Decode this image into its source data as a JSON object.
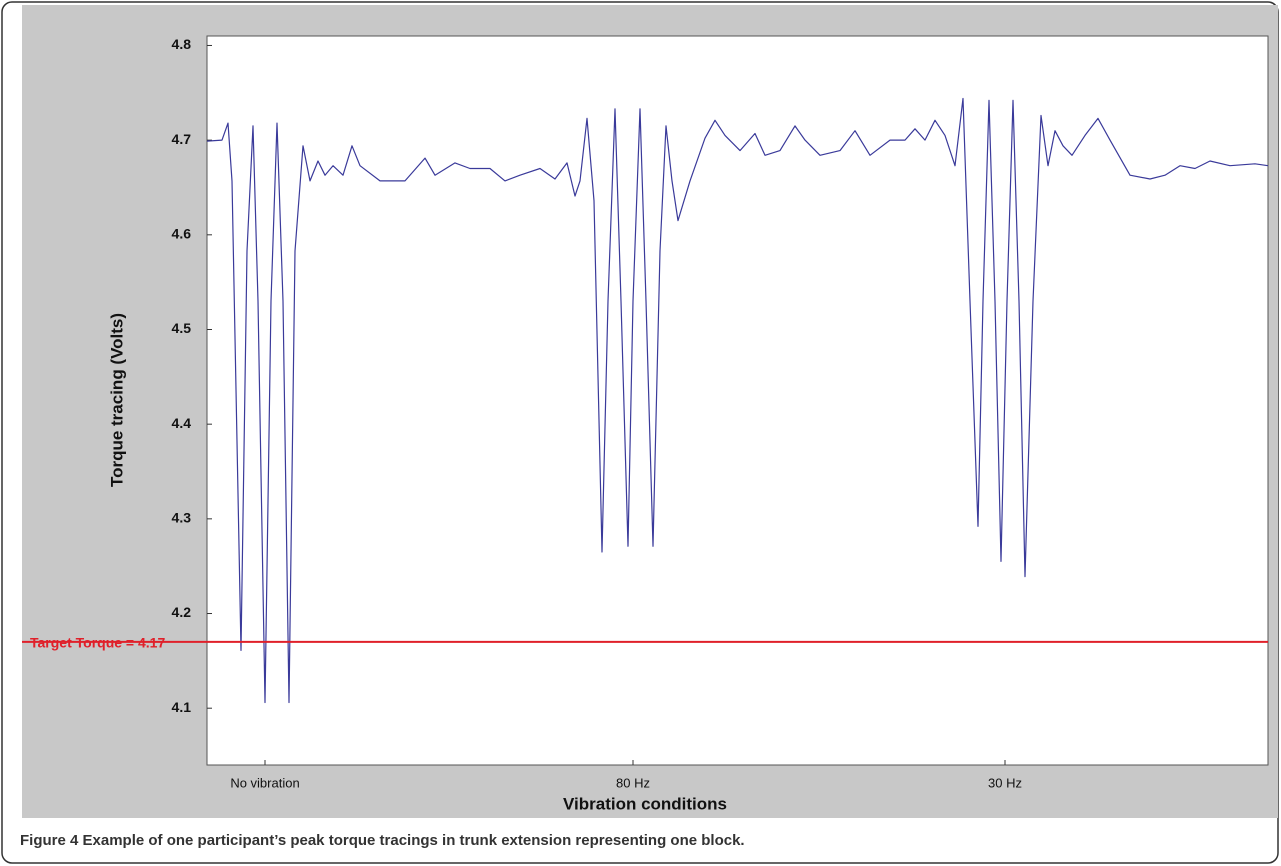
{
  "chart_data": {
    "type": "line",
    "ylabel": "Torque tracing (Volts)",
    "xlabel": "Vibration conditions",
    "caption": "Figure 4 Example of one participant’s peak torque tracings in trunk extension representing one block.",
    "target": {
      "value": 4.17,
      "label": "Target Torque = 4.17",
      "color": "#e0202a"
    },
    "xlim": [
      0,
      1061
    ],
    "xticks": [
      {
        "value": 58,
        "label": "No vibration"
      },
      {
        "value": 426,
        "label": "80 Hz"
      },
      {
        "value": 798,
        "label": "30 Hz"
      }
    ],
    "ylim": [
      4.04,
      4.81
    ],
    "yticks": [
      4.1,
      4.2,
      4.3,
      4.4,
      4.5,
      4.6,
      4.7,
      4.8
    ],
    "series": [
      {
        "color": "#3a3a9a",
        "x": [
          0,
          15,
          21,
          25,
          34,
          40,
          46,
          51,
          58,
          64,
          70,
          76,
          82,
          88,
          96,
          103,
          111,
          118,
          126,
          136,
          145,
          153,
          173,
          198,
          218,
          228,
          248,
          263,
          283,
          298,
          313,
          333,
          348,
          360,
          368,
          373,
          380,
          387,
          395,
          401,
          408,
          414,
          421,
          426,
          433,
          439,
          446,
          453,
          459,
          465,
          471,
          483,
          498,
          508,
          518,
          533,
          548,
          558,
          573,
          588,
          598,
          613,
          633,
          648,
          663,
          683,
          698,
          708,
          718,
          728,
          738,
          748,
          756,
          763,
          771,
          776,
          782,
          788,
          794,
          800,
          806,
          812,
          818,
          826,
          834,
          841,
          848,
          856,
          865,
          878,
          891,
          903,
          923,
          943,
          958,
          973,
          988,
          1003,
          1023,
          1048,
          1061
        ],
        "values": [
          4.699,
          4.7,
          4.718,
          4.657,
          4.161,
          4.583,
          4.715,
          4.53,
          4.106,
          4.53,
          4.718,
          4.53,
          4.106,
          4.583,
          4.694,
          4.657,
          4.678,
          4.663,
          4.673,
          4.663,
          4.694,
          4.673,
          4.657,
          4.657,
          4.681,
          4.663,
          4.676,
          4.67,
          4.67,
          4.657,
          4.663,
          4.67,
          4.659,
          4.676,
          4.641,
          4.657,
          4.723,
          4.636,
          4.265,
          4.53,
          4.733,
          4.53,
          4.271,
          4.53,
          4.733,
          4.53,
          4.271,
          4.583,
          4.715,
          4.657,
          4.615,
          4.657,
          4.702,
          4.721,
          4.705,
          4.689,
          4.707,
          4.684,
          4.689,
          4.715,
          4.7,
          4.684,
          4.689,
          4.71,
          4.684,
          4.7,
          4.7,
          4.712,
          4.7,
          4.721,
          4.705,
          4.673,
          4.744,
          4.53,
          4.292,
          4.53,
          4.742,
          4.53,
          4.255,
          4.53,
          4.742,
          4.53,
          4.239,
          4.53,
          4.726,
          4.673,
          4.71,
          4.694,
          4.684,
          4.705,
          4.723,
          4.7,
          4.663,
          4.659,
          4.663,
          4.673,
          4.67,
          4.678,
          4.673,
          4.675,
          4.673
        ]
      }
    ]
  }
}
